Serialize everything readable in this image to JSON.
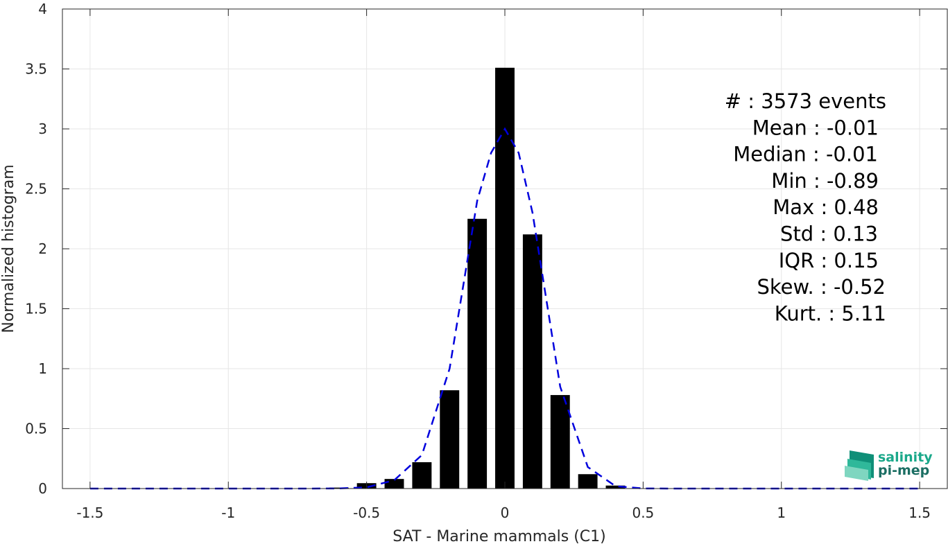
{
  "chart_data": {
    "type": "bar",
    "xlabel": "SAT - Marine mammals (C1)",
    "ylabel": "Normalized histogram",
    "xlim": [
      -1.6,
      1.6
    ],
    "ylim": [
      0,
      4
    ],
    "xticks": [
      -1.5,
      -1,
      -0.5,
      0,
      0.5,
      1,
      1.5
    ],
    "xtick_labels": [
      "-1.5",
      "-1",
      "-0.5",
      "0",
      "0.5",
      "1",
      "1.5"
    ],
    "yticks": [
      0,
      0.5,
      1,
      1.5,
      2,
      2.5,
      3,
      3.5,
      4
    ],
    "ytick_labels": [
      "0",
      "0.5",
      "1",
      "1.5",
      "2",
      "2.5",
      "3",
      "3.5",
      "4"
    ],
    "grid": true,
    "bar_width": 0.07,
    "bar_color": "#000000",
    "bars": {
      "x": [
        -0.6,
        -0.5,
        -0.4,
        -0.3,
        -0.2,
        -0.1,
        0.0,
        0.1,
        0.2,
        0.3,
        0.4
      ],
      "values": [
        0.008,
        0.045,
        0.08,
        0.22,
        0.82,
        2.25,
        3.51,
        2.12,
        0.78,
        0.12,
        0.025
      ]
    },
    "fit_curve": {
      "style": "dashed",
      "color": "#0000dd",
      "x": [
        -1.5,
        -1.4,
        -1.3,
        -1.2,
        -1.1,
        -1.0,
        -0.9,
        -0.8,
        -0.7,
        -0.6,
        -0.5,
        -0.4,
        -0.3,
        -0.2,
        -0.1,
        -0.05,
        0.0,
        0.05,
        0.1,
        0.2,
        0.3,
        0.4,
        0.5,
        0.6,
        0.7,
        0.8,
        0.9,
        1.0,
        1.1,
        1.2,
        1.3,
        1.4,
        1.5
      ],
      "y": [
        0,
        0,
        0,
        0,
        0,
        0,
        0,
        0,
        0,
        0.001,
        0.01,
        0.07,
        0.28,
        1.0,
        2.4,
        2.8,
        3.0,
        2.8,
        2.3,
        0.85,
        0.18,
        0.02,
        0.001,
        0,
        0,
        0,
        0,
        0,
        0,
        0,
        0,
        0,
        0
      ]
    },
    "annotations": [
      "#  : 3573 events",
      "Mean : -0.01",
      "Median : -0.01",
      "Min : -0.89",
      "Max : 0.48",
      "Std : 0.13",
      "IQR : 0.15",
      "Skew. : -0.52",
      "Kurt. : 5.11"
    ]
  },
  "logo": {
    "line1": "salinity",
    "line2": "pi-mep",
    "color": "#1aa88a"
  }
}
